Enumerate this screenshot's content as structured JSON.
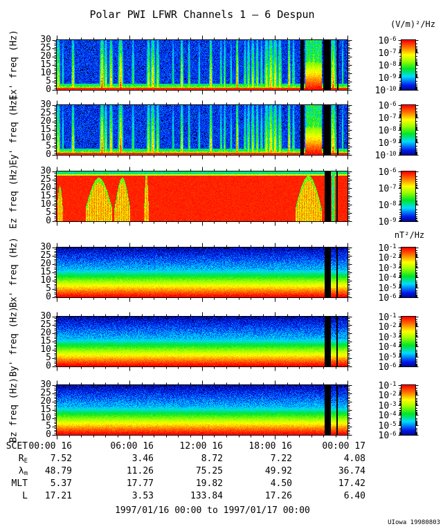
{
  "title": "Polar PWI LFWR Channels 1 — 6 Despun",
  "colorbar_units_top": "(V/m)²/Hz",
  "colorbar_units_mid": "nT²/Hz",
  "footer_range": "1997/01/16 00:00 to 1997/01/17 00:00",
  "credit": "UIowa 19980803",
  "chart_data": {
    "type": "heatmap",
    "title": "Polar PWI LFWR Channels 1 - 6 Despun",
    "x_axis": {
      "ticks": [
        "00:00 16",
        "06:00 16",
        "12:00 16",
        "18:00 16",
        "00:00 17"
      ],
      "range_hours": [
        0,
        24
      ],
      "major_every_hours": 6,
      "minor_every_hours": 1
    },
    "y_axis": {
      "ticks": [
        0,
        5,
        10,
        15,
        20,
        25,
        30
      ],
      "ylim": [
        0,
        30
      ],
      "unit": "Hz",
      "minor_every": 1
    },
    "cbar_base": "10",
    "panels": [
      {
        "id": "ex",
        "ylabel": "Ex' freq (Hz)",
        "kind": "E",
        "seed": 11,
        "cbar_exps": [
          "-6",
          "-7",
          "-8",
          "-9",
          "-10"
        ]
      },
      {
        "id": "ey",
        "ylabel": "Ey' freq (Hz)",
        "kind": "E",
        "seed": 23,
        "cbar_exps": [
          "-6",
          "-7",
          "-8",
          "-9",
          "-10"
        ]
      },
      {
        "id": "ez",
        "ylabel": "Ez freq (Hz)",
        "kind": "EZ",
        "seed": 37,
        "cbar_exps": [
          "-6",
          "-7",
          "-8",
          "-9"
        ]
      },
      {
        "id": "bx",
        "ylabel": "Bx' freq (Hz)",
        "kind": "B",
        "seed": 41,
        "cbar_exps": [
          "-1",
          "-2",
          "-3",
          "-4",
          "-5",
          "-6"
        ]
      },
      {
        "id": "by",
        "ylabel": "By' freq (Hz)",
        "kind": "B",
        "seed": 53,
        "cbar_exps": [
          "-1",
          "-2",
          "-3",
          "-4",
          "-5",
          "-6"
        ]
      },
      {
        "id": "bz",
        "ylabel": "Bz freq (Hz)",
        "kind": "B",
        "seed": 67,
        "cbar_exps": [
          "-1",
          "-2",
          "-3",
          "-4",
          "-5",
          "-6"
        ]
      }
    ],
    "features": {
      "bursts": [
        [
          0.004,
          2,
          0.8
        ],
        [
          0.02,
          1.2,
          0.5
        ],
        [
          0.055,
          1.5,
          0.85
        ],
        [
          0.155,
          2.2,
          1.0
        ],
        [
          0.168,
          1.5,
          0.75
        ],
        [
          0.186,
          1.8,
          0.9
        ],
        [
          0.219,
          2.4,
          1.0
        ],
        [
          0.262,
          1.5,
          0.6
        ],
        [
          0.315,
          1.8,
          0.8
        ],
        [
          0.33,
          2.2,
          0.9
        ],
        [
          0.347,
          1.8,
          0.75
        ],
        [
          0.4,
          1.2,
          0.55
        ],
        [
          0.43,
          1.5,
          0.85
        ],
        [
          0.455,
          1.2,
          0.65
        ],
        [
          0.49,
          1.2,
          0.5
        ],
        [
          0.53,
          1.5,
          0.9
        ],
        [
          0.565,
          1.2,
          0.6
        ],
        [
          0.578,
          1.2,
          0.65
        ],
        [
          0.6,
          1.2,
          0.5
        ],
        [
          0.621,
          1.3,
          1.0
        ],
        [
          0.648,
          1.4,
          0.6
        ],
        [
          0.66,
          1.6,
          0.7
        ],
        [
          0.675,
          1.8,
          0.75
        ],
        [
          0.69,
          1.6,
          0.7
        ],
        [
          0.705,
          1.4,
          0.6
        ],
        [
          0.722,
          2.2,
          0.8
        ],
        [
          0.737,
          2.6,
          0.9
        ],
        [
          0.752,
          2.2,
          0.85
        ],
        [
          0.768,
          2,
          0.75
        ],
        [
          0.8,
          1.3,
          0.95
        ],
        [
          0.815,
          1.5,
          0.6
        ],
        [
          0.87,
          3,
          0.85
        ],
        [
          0.885,
          3,
          0.9
        ],
        [
          0.9,
          2.5,
          0.85
        ],
        [
          0.952,
          2.8,
          0.95
        ],
        [
          0.985,
          0.9,
          0.6
        ]
      ],
      "red_mass": [
        0.856,
        0.912
      ],
      "gaps_e": [
        [
          0.838,
          0.851
        ],
        [
          0.917,
          0.945
        ],
        [
          0.966,
          0.971
        ]
      ],
      "gaps_b": [
        [
          0.922,
          0.945
        ],
        [
          0.962,
          0.968
        ]
      ],
      "ez_blobs": [
        [
          0.098,
          0.19,
          0.62
        ],
        [
          0.198,
          0.252,
          0.62
        ],
        [
          0.3,
          0.316,
          0.75
        ],
        [
          0.822,
          0.912,
          0.66
        ],
        [
          0.0,
          0.02,
          0.45
        ]
      ],
      "ez_greencol": [
        0.946,
        0.958
      ]
    }
  },
  "ephemeris": {
    "rows": [
      {
        "main": "SCET",
        "sub": "",
        "values": [
          "00:00 16",
          "06:00 16",
          "12:00 16",
          "18:00 16",
          "00:00 17"
        ]
      },
      {
        "main": "R",
        "sub": "E",
        "values": [
          "7.52",
          "3.46",
          "8.72",
          "7.22",
          "4.08"
        ]
      },
      {
        "main": "λ",
        "sub": "m",
        "values": [
          "48.79",
          "11.26",
          "75.25",
          "49.92",
          "36.74"
        ]
      },
      {
        "main": "MLT",
        "sub": "",
        "values": [
          "5.37",
          "17.77",
          "19.82",
          "4.50",
          "17.42"
        ]
      },
      {
        "main": "L",
        "sub": "",
        "values": [
          "17.21",
          "3.53",
          "133.84",
          "17.26",
          "6.40"
        ]
      }
    ]
  }
}
